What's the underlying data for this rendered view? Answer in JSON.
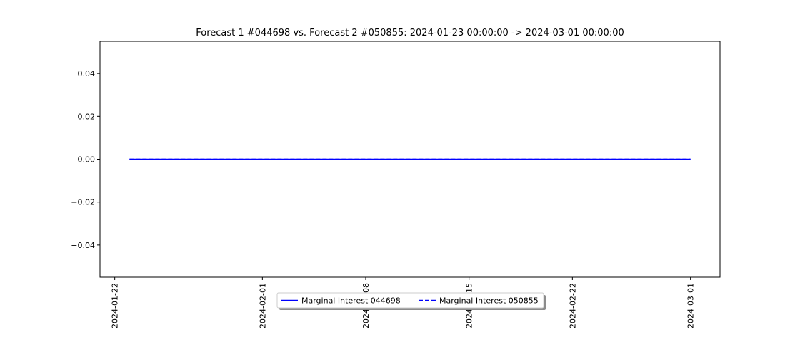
{
  "chart_data": {
    "type": "line",
    "title": "Forecast 1 #044698 vs. Forecast 2 #050855: 2024-01-23 00:00:00 -> 2024-03-01 00:00:00",
    "xlabel": "",
    "ylabel": "",
    "x_type": "date",
    "xlim": [
      "2024-01-21",
      "2024-03-03"
    ],
    "ylim": [
      -0.055,
      0.055
    ],
    "x_ticks": [
      "2024-01-22",
      "2024-02-01",
      "2024-02-08",
      "2024-02-15",
      "2024-02-22",
      "2024-03-01"
    ],
    "y_ticks": [
      0.04,
      0.02,
      0.0,
      -0.02,
      -0.04
    ],
    "y_tick_labels": [
      "0.04",
      "0.02",
      "0.00",
      "−0.02",
      "−0.04"
    ],
    "grid": false,
    "legend_position": "bottom-center",
    "legend_columns": 2,
    "series": [
      {
        "name": "Marginal Interest 044698",
        "color": "#0000ff",
        "line_style": "solid",
        "x": [
          "2024-01-23",
          "2024-03-01"
        ],
        "y": [
          0,
          0
        ]
      },
      {
        "name": "Marginal Interest 050855",
        "color": "#0000ff",
        "line_style": "dashed",
        "x": [
          "2024-01-23",
          "2024-03-01"
        ],
        "y": [
          0,
          0
        ]
      }
    ]
  }
}
